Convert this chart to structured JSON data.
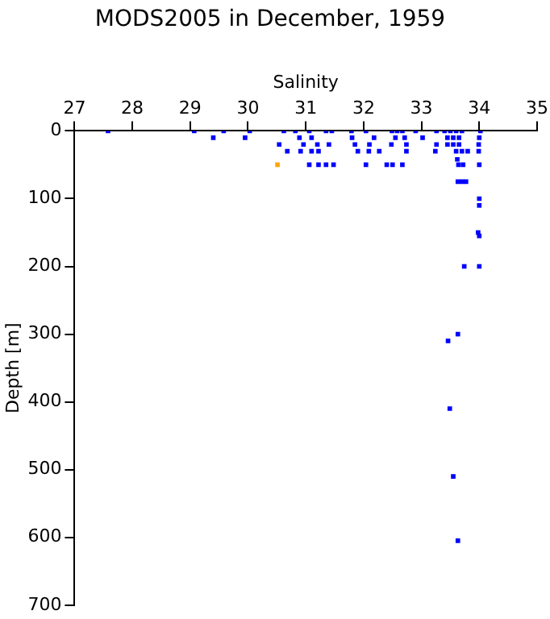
{
  "chart_data": {
    "type": "scatter",
    "title": "MODS2005 in December, 1959",
    "xlabel": "Salinity",
    "ylabel": "Depth [m]",
    "xlim": [
      27,
      35
    ],
    "xticks": [
      27,
      28,
      29,
      30,
      31,
      32,
      33,
      34,
      35
    ],
    "ylim": [
      700,
      0
    ],
    "yticks": [
      0,
      100,
      200,
      300,
      400,
      500,
      600,
      700
    ],
    "grid": false,
    "legend": false,
    "marker": "square",
    "series": [
      {
        "color": "#0000ff",
        "x": [
          27.58,
          29.07,
          29.58,
          30.03,
          30.62,
          30.82,
          31.06,
          31.35,
          31.45,
          31.79,
          32.04,
          32.49,
          32.58,
          32.67,
          32.9,
          33.26,
          33.4,
          33.5,
          33.6,
          33.7,
          34.02,
          29.4,
          29.95,
          30.89,
          31.1,
          31.8,
          32.18,
          32.55,
          32.71,
          33.02,
          33.45,
          33.55,
          33.65,
          34.0,
          30.54,
          30.96,
          31.2,
          31.4,
          31.85,
          32.1,
          32.48,
          32.74,
          33.26,
          33.45,
          33.55,
          33.65,
          33.99,
          30.68,
          30.91,
          31.1,
          31.22,
          31.9,
          32.09,
          32.27,
          32.74,
          33.24,
          33.6,
          33.7,
          33.8,
          33.99,
          31.06,
          31.22,
          31.35,
          31.48,
          32.04,
          32.4,
          32.5,
          32.67,
          33.64,
          33.72,
          34.0,
          33.62,
          33.63,
          33.7,
          33.77,
          34.0,
          34.0,
          33.98,
          34.0,
          33.74,
          34.0,
          33.63,
          33.46,
          33.49,
          33.55,
          33.63
        ],
        "values": [
          0,
          0,
          0,
          0,
          0,
          0,
          0,
          0,
          0,
          0,
          0,
          0,
          0,
          0,
          0,
          0,
          0,
          0,
          0,
          0,
          0,
          10,
          10,
          10,
          10,
          10,
          10,
          10,
          10,
          10,
          10,
          10,
          10,
          10,
          20,
          20,
          20,
          20,
          20,
          20,
          20,
          20,
          20,
          20,
          20,
          20,
          20,
          30,
          30,
          30,
          30,
          30,
          30,
          30,
          30,
          30,
          30,
          30,
          30,
          30,
          50,
          50,
          50,
          50,
          50,
          50,
          50,
          50,
          50,
          50,
          50,
          42,
          75,
          75,
          75,
          100,
          110,
          150,
          155,
          200,
          200,
          300,
          310,
          410,
          510,
          605
        ]
      },
      {
        "color": "#ffa500",
        "x": [
          30.51
        ],
        "values": [
          50
        ]
      }
    ]
  }
}
